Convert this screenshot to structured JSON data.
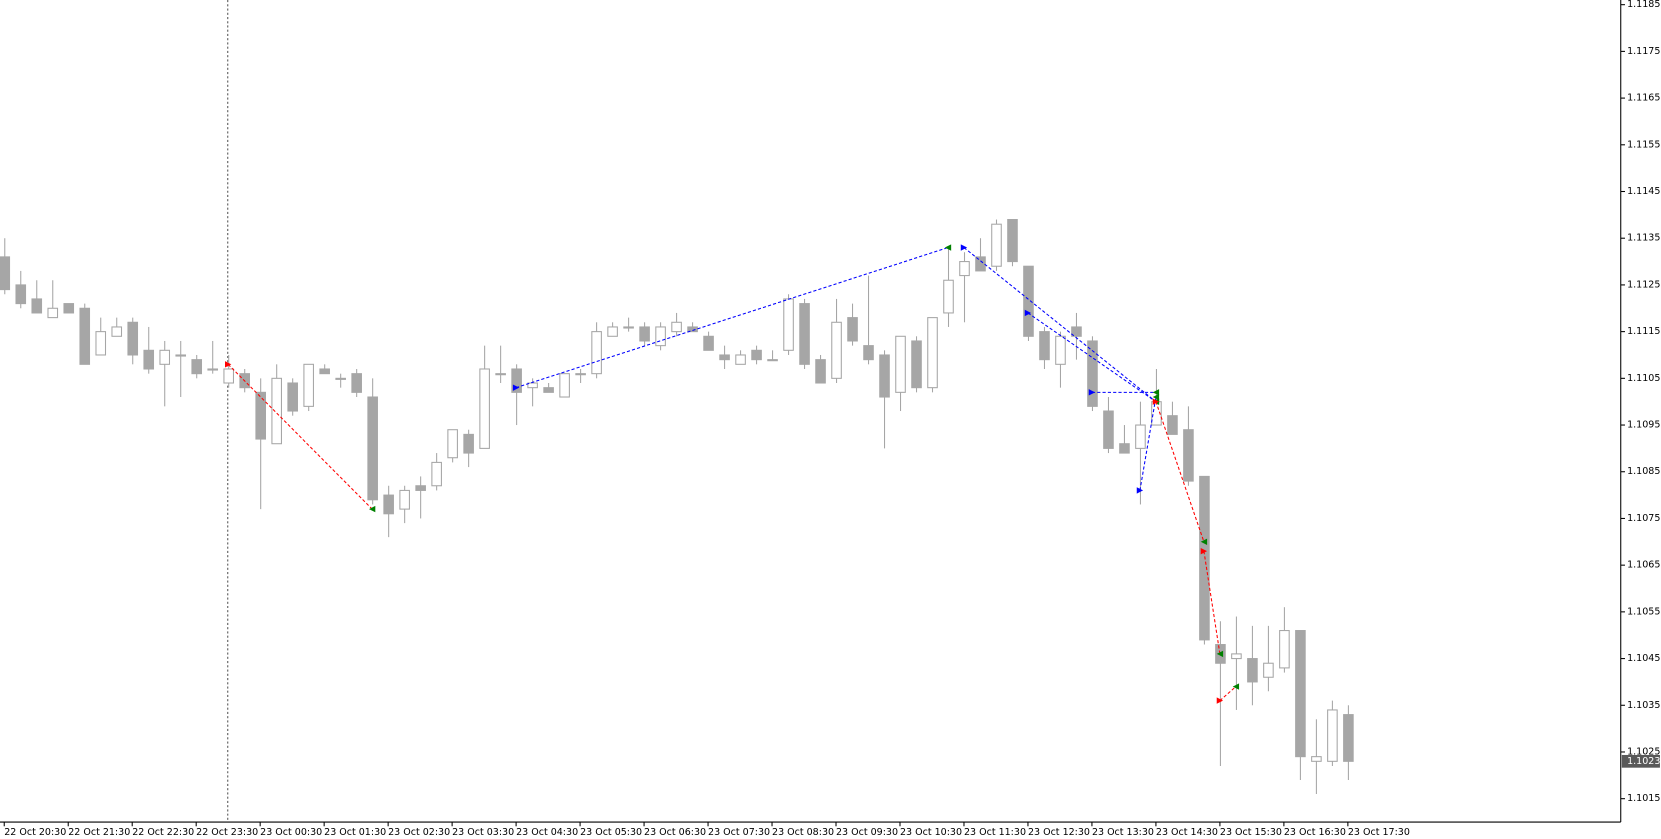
{
  "chart_data": {
    "type": "candlestick",
    "categories": [
      "22 Oct 20:30",
      null,
      null,
      null,
      "22 Oct 21:30",
      null,
      null,
      null,
      "22 Oct 22:30",
      null,
      null,
      null,
      "22 Oct 23:30",
      null,
      null,
      null,
      "23 Oct 00:30",
      null,
      null,
      null,
      "23 Oct 01:30",
      null,
      null,
      null,
      "23 Oct 02:30",
      null,
      null,
      null,
      "23 Oct 03:30",
      null,
      null,
      null,
      "23 Oct 04:30",
      null,
      null,
      null,
      "23 Oct 05:30",
      null,
      null,
      null,
      "23 Oct 06:30",
      null,
      null,
      null,
      "23 Oct 07:30",
      null,
      null,
      null,
      "23 Oct 08:30",
      null,
      null,
      null,
      "23 Oct 09:30",
      null,
      null,
      null,
      "23 Oct 10:30",
      null,
      null,
      null,
      "23 Oct 11:30",
      null,
      null,
      null,
      "23 Oct 12:30",
      null,
      null,
      null,
      "23 Oct 13:30",
      null,
      null,
      null,
      "23 Oct 14:30",
      null,
      null,
      null,
      "23 Oct 15:30",
      null,
      null,
      null,
      "23 Oct 16:30",
      null,
      null,
      null,
      "23 Oct 17:30"
    ],
    "open": [
      1.1131,
      1.1125,
      1.1122,
      1.1118,
      1.1121,
      1.112,
      1.111,
      1.1114,
      1.1117,
      1.1111,
      1.1108,
      1.111,
      1.1109,
      1.1107,
      1.1104,
      1.1106,
      1.1102,
      1.1091,
      1.1104,
      1.1099,
      1.1107,
      1.1105,
      1.1106,
      1.1101,
      1.108,
      1.1077,
      1.1082,
      1.1082,
      1.1088,
      1.1093,
      1.109,
      1.1106,
      1.1107,
      1.1103,
      1.1103,
      1.1101,
      1.1106,
      1.1106,
      1.1114,
      1.1116,
      1.1116,
      1.1112,
      1.1115,
      1.1116,
      1.1114,
      1.111,
      1.1108,
      1.1111,
      1.1109,
      1.1111,
      1.1121,
      1.1109,
      1.1105,
      1.1118,
      1.1112,
      1.111,
      1.1102,
      1.1113,
      1.1103,
      1.1119,
      1.1127,
      1.1131,
      1.1129,
      1.1139,
      1.1129,
      1.1115,
      1.1108,
      1.1116,
      1.1113,
      1.1098,
      1.1091,
      1.109,
      1.1095,
      1.1097,
      1.1094,
      1.1084,
      1.1048,
      1.1045,
      1.1045,
      1.1041,
      1.1043,
      1.1051,
      1.1023,
      1.1023,
      1.1033
    ],
    "high": [
      1.1135,
      1.1128,
      1.1126,
      1.1126,
      1.1121,
      1.1121,
      1.1118,
      1.1118,
      1.1118,
      1.1116,
      1.1113,
      1.1113,
      1.111,
      1.1113,
      1.111,
      1.1107,
      1.1105,
      1.1108,
      1.1105,
      1.1108,
      1.1108,
      1.1106,
      1.1107,
      1.1105,
      1.1082,
      1.1082,
      1.1084,
      1.1089,
      1.1094,
      1.1094,
      1.1112,
      1.1112,
      1.1108,
      1.1105,
      1.1104,
      1.1106,
      1.1107,
      1.1117,
      1.1117,
      1.1118,
      1.1117,
      1.1117,
      1.1119,
      1.1117,
      1.1115,
      1.1112,
      1.1111,
      1.1112,
      1.1111,
      1.1123,
      1.1122,
      1.111,
      1.1122,
      1.1121,
      1.1127,
      1.1111,
      1.1114,
      1.1114,
      1.1118,
      1.1133,
      1.1132,
      1.1135,
      1.1139,
      1.1139,
      1.1129,
      1.1116,
      1.1115,
      1.1119,
      1.1114,
      1.1101,
      1.1095,
      1.11,
      1.1107,
      1.11,
      1.1099,
      1.1084,
      1.1053,
      1.1054,
      1.1052,
      1.1052,
      1.1056,
      1.1051,
      1.1032,
      1.1036,
      1.1035
    ],
    "low": [
      1.1123,
      1.112,
      1.1119,
      1.1119,
      1.1119,
      1.1108,
      1.111,
      1.1114,
      1.1108,
      1.1106,
      1.1099,
      1.1101,
      1.1105,
      1.1106,
      1.1103,
      1.1102,
      1.1077,
      1.1091,
      1.1097,
      1.1098,
      1.1106,
      1.1103,
      1.1101,
      1.1078,
      1.1071,
      1.1074,
      1.1075,
      1.1081,
      1.1087,
      1.1086,
      1.109,
      1.1104,
      1.1095,
      1.1099,
      1.1102,
      1.1101,
      1.1104,
      1.1105,
      1.1114,
      1.1115,
      1.1112,
      1.1111,
      1.1114,
      1.1115,
      1.1111,
      1.1107,
      1.1108,
      1.1108,
      1.1109,
      1.111,
      1.1107,
      1.1104,
      1.1104,
      1.1112,
      1.1108,
      1.109,
      1.1098,
      1.1102,
      1.1102,
      1.1116,
      1.1117,
      1.1128,
      1.1128,
      1.1129,
      1.1113,
      1.1107,
      1.1103,
      1.1109,
      1.1098,
      1.1089,
      1.1089,
      1.1078,
      1.1095,
      1.1093,
      1.1082,
      1.1048,
      1.1022,
      1.1034,
      1.1035,
      1.1038,
      1.1042,
      1.1019,
      1.1016,
      1.1022,
      1.1019
    ],
    "close": [
      1.1124,
      1.1121,
      1.1119,
      1.112,
      1.1119,
      1.1108,
      1.1115,
      1.1116,
      1.111,
      1.1107,
      1.1111,
      1.111,
      1.1106,
      1.1107,
      1.1107,
      1.1103,
      1.1092,
      1.1105,
      1.1098,
      1.1108,
      1.1106,
      1.1105,
      1.1102,
      1.1079,
      1.1076,
      1.1081,
      1.1081,
      1.1087,
      1.1094,
      1.1089,
      1.1107,
      1.1106,
      1.1102,
      1.1104,
      1.1102,
      1.1106,
      1.1106,
      1.1115,
      1.1116,
      1.1116,
      1.1113,
      1.1116,
      1.1117,
      1.1115,
      1.1111,
      1.1109,
      1.111,
      1.1109,
      1.1109,
      1.1122,
      1.1108,
      1.1104,
      1.1117,
      1.1113,
      1.1109,
      1.1101,
      1.1114,
      1.1103,
      1.1118,
      1.1126,
      1.113,
      1.1128,
      1.1138,
      1.113,
      1.1114,
      1.1109,
      1.1114,
      1.1114,
      1.1099,
      1.109,
      1.1089,
      1.1095,
      1.11,
      1.1093,
      1.1083,
      1.1049,
      1.1044,
      1.1046,
      1.104,
      1.1044,
      1.1051,
      1.1024,
      1.1024,
      1.1034,
      1.1023
    ],
    "up_color": "#ffffff",
    "down_color": "#a6a6a6",
    "wick_color": "#a6a6a6",
    "ylim": [
      1.101,
      1.1186
    ],
    "yticks": [
      1.1185,
      1.1175,
      1.1165,
      1.1155,
      1.1145,
      1.1135,
      1.1125,
      1.1115,
      1.1105,
      1.1095,
      1.1085,
      1.1075,
      1.1065,
      1.1055,
      1.1045,
      1.1035,
      1.1025,
      1.1015
    ],
    "last_price": 1.1023,
    "trades": [
      {
        "color": "#ff0000",
        "x": [
          14,
          23
        ],
        "y": [
          1.1108,
          1.1077
        ]
      },
      {
        "color": "#0000ff",
        "x": [
          32,
          59
        ],
        "y": [
          1.1103,
          1.1133
        ]
      },
      {
        "color": "#0000ff",
        "x": [
          60,
          72
        ],
        "y": [
          1.1133,
          1.11
        ]
      },
      {
        "color": "#0000ff",
        "x": [
          64,
          72
        ],
        "y": [
          1.1119,
          1.11
        ]
      },
      {
        "color": "#0000ff",
        "x": [
          68,
          72
        ],
        "y": [
          1.1102,
          1.1102
        ]
      },
      {
        "color": "#0000ff",
        "x": [
          71,
          72
        ],
        "y": [
          1.1081,
          1.1101
        ]
      },
      {
        "color": "#ff0000",
        "x": [
          72,
          75
        ],
        "y": [
          1.11,
          1.107
        ]
      },
      {
        "color": "#ff0000",
        "x": [
          75,
          76
        ],
        "y": [
          1.1068,
          1.1046
        ]
      },
      {
        "color": "#ff0000",
        "x": [
          76,
          77
        ],
        "y": [
          1.1036,
          1.1039
        ]
      }
    ]
  }
}
